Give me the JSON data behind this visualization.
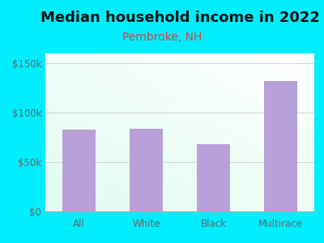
{
  "title": "Median household income in 2022",
  "subtitle": "Pembroke, NH",
  "categories": [
    "All",
    "White",
    "Black",
    "Multirace"
  ],
  "values": [
    83000,
    84000,
    68000,
    132000
  ],
  "bar_color": "#b8a0d8",
  "title_fontsize": 13,
  "subtitle_fontsize": 10,
  "subtitle_color": "#cc4444",
  "title_color": "#111111",
  "tick_label_color": "#666666",
  "bg_outer": "#00eeff",
  "ylim": [
    0,
    160000
  ],
  "yticks": [
    0,
    50000,
    100000,
    150000
  ],
  "ytick_labels": [
    "$0",
    "$50k",
    "$100k",
    "$150k"
  ]
}
